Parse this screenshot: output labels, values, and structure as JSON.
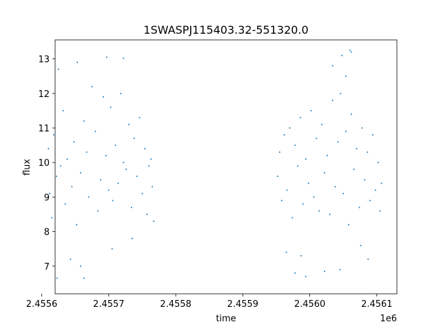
{
  "chart_data": {
    "type": "scatter",
    "title": "1SWASPJ115403.32-551320.0",
    "xlabel": "time",
    "ylabel": "flux",
    "x_offset_label": "1e6",
    "xlim": [
      2.45562,
      2.45613
    ],
    "ylim": [
      6.2,
      13.55
    ],
    "xticks": [
      {
        "value": 2.4556,
        "label": "2.4556"
      },
      {
        "value": 2.4557,
        "label": "2.4557"
      },
      {
        "value": 2.4558,
        "label": "2.4558"
      },
      {
        "value": 2.4559,
        "label": "2.4559"
      },
      {
        "value": 2.456,
        "label": "2.4560"
      },
      {
        "value": 2.4561,
        "label": "2.4561"
      }
    ],
    "yticks": [
      {
        "value": 7,
        "label": "7"
      },
      {
        "value": 8,
        "label": "8"
      },
      {
        "value": 9,
        "label": "9"
      },
      {
        "value": 10,
        "label": "10"
      },
      {
        "value": 11,
        "label": "11"
      },
      {
        "value": 12,
        "label": "12"
      },
      {
        "value": 13,
        "label": "13"
      }
    ],
    "marker_color": "#1f77b4",
    "grid": false,
    "series": [
      {
        "points": [
          [
            2.45561,
            10.4
          ],
          [
            2.455612,
            9.1
          ],
          [
            2.455615,
            8.4
          ],
          [
            2.455618,
            10.8
          ],
          [
            2.455622,
            9.6
          ],
          [
            2.455628,
            9.9
          ],
          [
            2.455632,
            11.5
          ],
          [
            2.455635,
            8.8
          ],
          [
            2.455638,
            10.1
          ],
          [
            2.455645,
            9.3
          ],
          [
            2.455648,
            10.6
          ],
          [
            2.455652,
            8.2
          ],
          [
            2.455658,
            9.7
          ],
          [
            2.455663,
            11.2
          ],
          [
            2.455667,
            10.3
          ],
          [
            2.45567,
            9.0
          ],
          [
            2.455675,
            12.2
          ],
          [
            2.45568,
            10.9
          ],
          [
            2.455684,
            8.6
          ],
          [
            2.455688,
            9.5
          ],
          [
            2.455692,
            11.9
          ],
          [
            2.455696,
            10.2
          ],
          [
            2.4557,
            9.2
          ],
          [
            2.455703,
            11.6
          ],
          [
            2.455706,
            8.9
          ],
          [
            2.45571,
            10.5
          ],
          [
            2.455714,
            9.4
          ],
          [
            2.455718,
            12.0
          ],
          [
            2.455722,
            10.0
          ],
          [
            2.455726,
            9.8
          ],
          [
            2.45573,
            11.1
          ],
          [
            2.455734,
            8.7
          ],
          [
            2.455738,
            10.7
          ],
          [
            2.455742,
            9.6
          ],
          [
            2.455746,
            11.3
          ],
          [
            2.45575,
            9.1
          ],
          [
            2.455754,
            10.4
          ],
          [
            2.455757,
            8.5
          ],
          [
            2.45576,
            9.9
          ],
          [
            2.455763,
            10.1
          ],
          [
            2.455765,
            9.3
          ],
          [
            2.455767,
            8.3
          ],
          [
            2.455625,
            12.7
          ],
          [
            2.455653,
            12.9
          ],
          [
            2.455697,
            13.05
          ],
          [
            2.455722,
            13.02
          ],
          [
            2.455643,
            7.2
          ],
          [
            2.455705,
            7.5
          ],
          [
            2.455735,
            7.8
          ],
          [
            2.455623,
            6.65
          ],
          [
            2.455663,
            6.65
          ],
          [
            2.455658,
            7.0
          ]
        ]
      },
      {
        "points": [
          [
            2.455952,
            9.6
          ],
          [
            2.455955,
            10.3
          ],
          [
            2.455958,
            8.9
          ],
          [
            2.455962,
            10.8
          ],
          [
            2.455966,
            9.2
          ],
          [
            2.45597,
            11.0
          ],
          [
            2.455974,
            8.4
          ],
          [
            2.455978,
            10.5
          ],
          [
            2.455982,
            9.9
          ],
          [
            2.455986,
            11.3
          ],
          [
            2.45599,
            8.8
          ],
          [
            2.455994,
            10.1
          ],
          [
            2.455998,
            9.4
          ],
          [
            2.456002,
            11.5
          ],
          [
            2.456006,
            9.0
          ],
          [
            2.45601,
            10.7
          ],
          [
            2.456014,
            8.6
          ],
          [
            2.456018,
            11.1
          ],
          [
            2.456022,
            9.7
          ],
          [
            2.456026,
            10.2
          ],
          [
            2.45603,
            8.5
          ],
          [
            2.456034,
            11.8
          ],
          [
            2.456038,
            9.3
          ],
          [
            2.456042,
            10.6
          ],
          [
            2.456046,
            12.0
          ],
          [
            2.45605,
            9.1
          ],
          [
            2.456054,
            10.9
          ],
          [
            2.456058,
            8.2
          ],
          [
            2.456062,
            11.4
          ],
          [
            2.456066,
            9.8
          ],
          [
            2.45607,
            10.4
          ],
          [
            2.456074,
            8.7
          ],
          [
            2.456078,
            11.0
          ],
          [
            2.456082,
            9.5
          ],
          [
            2.456086,
            10.3
          ],
          [
            2.45609,
            8.9
          ],
          [
            2.456094,
            10.8
          ],
          [
            2.456098,
            9.2
          ],
          [
            2.456102,
            10.0
          ],
          [
            2.456105,
            8.6
          ],
          [
            2.456107,
            9.4
          ],
          [
            2.456034,
            12.8
          ],
          [
            2.456048,
            13.1
          ],
          [
            2.45606,
            13.25
          ],
          [
            2.456062,
            13.2
          ],
          [
            2.456054,
            12.5
          ],
          [
            2.455978,
            6.8
          ],
          [
            2.455965,
            7.4
          ],
          [
            2.455987,
            7.3
          ],
          [
            2.456045,
            6.9
          ],
          [
            2.456087,
            7.2
          ],
          [
            2.456076,
            7.6
          ],
          [
            2.455994,
            6.7
          ],
          [
            2.456022,
            6.85
          ]
        ]
      }
    ]
  }
}
